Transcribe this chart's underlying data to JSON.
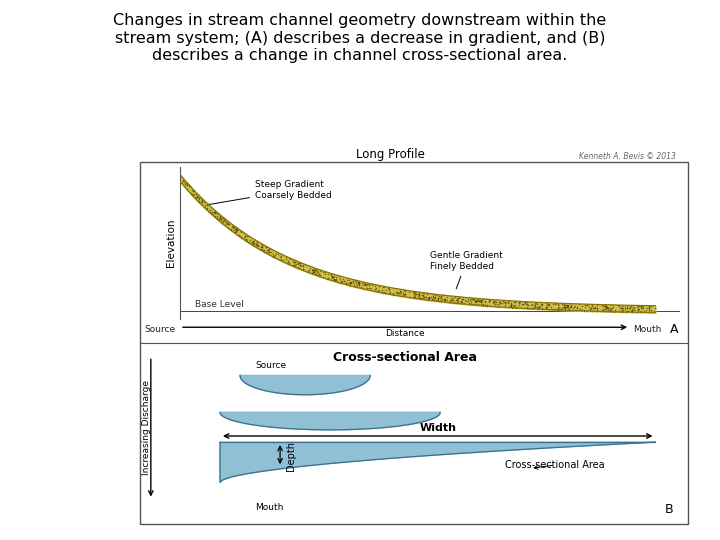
{
  "title": "Changes in stream channel geometry downstream within the\nstream system; (A) describes a decrease in gradient, and (B)\ndescribes a change in channel cross-sectional area.",
  "title_fontsize": 11.5,
  "bg_color": "#ffffff",
  "panel_bg": "#ffffff",
  "border_color": "#555555",
  "long_profile_title": "Long Profile",
  "copyright_text": "Kenneth A. Bevis © 2013",
  "steep_label": "Steep Gradient\nCoarsely Bedded",
  "gentle_label": "Gentle Gradient\nFinely Bedded",
  "base_level_label": "Base Level",
  "elevation_label": "Elevation",
  "source_label_A": "Source",
  "mouth_label_A": "Mouth",
  "distance_label": "Distance",
  "A_label": "A",
  "cross_section_title": "Cross-sectional Area",
  "source_label_B": "Source",
  "mouth_label_B": "Mouth",
  "inc_discharge_label": "Increasing Discharge",
  "width_label": "Width",
  "depth_label": "Depth",
  "cross_section_label": "Cross-sectional Area",
  "B_label": "B",
  "stream_fill": "#cfc050",
  "stream_edge": "#8B7500",
  "channel_fill": "#85b8d0",
  "channel_edge": "#3a7090"
}
